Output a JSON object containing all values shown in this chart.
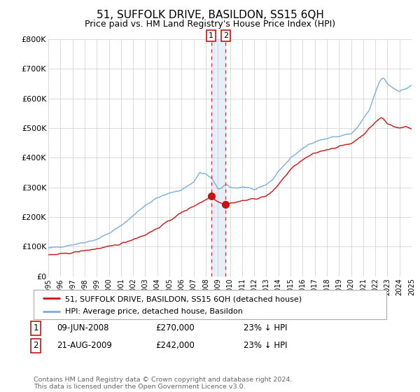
{
  "title": "51, SUFFOLK DRIVE, BASILDON, SS15 6QH",
  "subtitle": "Price paid vs. HM Land Registry's House Price Index (HPI)",
  "title_fontsize": 11,
  "subtitle_fontsize": 9,
  "hpi_color": "#7aaedc",
  "price_color": "#cc1111",
  "background_color": "#ffffff",
  "grid_color": "#cccccc",
  "ylim": [
    0,
    800000
  ],
  "yticks": [
    0,
    100000,
    200000,
    300000,
    400000,
    500000,
    600000,
    700000,
    800000
  ],
  "ytick_labels": [
    "£0",
    "£100K",
    "£200K",
    "£300K",
    "£400K",
    "£500K",
    "£600K",
    "£700K",
    "£800K"
  ],
  "transaction1_date": 2008.44,
  "transaction1_price": 270000,
  "transaction2_date": 2009.64,
  "transaction2_price": 242000,
  "legend_label_price": "51, SUFFOLK DRIVE, BASILDON, SS15 6QH (detached house)",
  "legend_label_hpi": "HPI: Average price, detached house, Basildon",
  "table_rows": [
    {
      "num": "1",
      "date": "09-JUN-2008",
      "price": "£270,000",
      "note": "23% ↓ HPI"
    },
    {
      "num": "2",
      "date": "21-AUG-2009",
      "price": "£242,000",
      "note": "23% ↓ HPI"
    }
  ],
  "footnote": "Contains HM Land Registry data © Crown copyright and database right 2024.\nThis data is licensed under the Open Government Licence v3.0.",
  "xmin": 1995,
  "xmax": 2025,
  "hpi_anchors": [
    [
      1995.0,
      95000
    ],
    [
      1996.0,
      100000
    ],
    [
      1997.0,
      107000
    ],
    [
      1998.0,
      115000
    ],
    [
      1999.0,
      125000
    ],
    [
      2000.0,
      145000
    ],
    [
      2001.0,
      170000
    ],
    [
      2002.0,
      205000
    ],
    [
      2003.0,
      240000
    ],
    [
      2004.0,
      265000
    ],
    [
      2005.0,
      280000
    ],
    [
      2006.0,
      292000
    ],
    [
      2007.0,
      318000
    ],
    [
      2007.5,
      350000
    ],
    [
      2008.0,
      345000
    ],
    [
      2008.5,
      330000
    ],
    [
      2009.0,
      295000
    ],
    [
      2009.3,
      298000
    ],
    [
      2009.5,
      305000
    ],
    [
      2009.7,
      308000
    ],
    [
      2010.0,
      300000
    ],
    [
      2010.5,
      298000
    ],
    [
      2011.0,
      302000
    ],
    [
      2011.5,
      300000
    ],
    [
      2012.0,
      292000
    ],
    [
      2012.5,
      298000
    ],
    [
      2013.0,
      310000
    ],
    [
      2013.5,
      325000
    ],
    [
      2014.0,
      355000
    ],
    [
      2014.5,
      375000
    ],
    [
      2015.0,
      400000
    ],
    [
      2015.5,
      415000
    ],
    [
      2016.0,
      430000
    ],
    [
      2016.5,
      445000
    ],
    [
      2017.0,
      455000
    ],
    [
      2017.5,
      460000
    ],
    [
      2018.0,
      465000
    ],
    [
      2018.5,
      470000
    ],
    [
      2019.0,
      472000
    ],
    [
      2019.5,
      478000
    ],
    [
      2020.0,
      480000
    ],
    [
      2020.5,
      500000
    ],
    [
      2021.0,
      530000
    ],
    [
      2021.5,
      560000
    ],
    [
      2022.0,
      620000
    ],
    [
      2022.3,
      650000
    ],
    [
      2022.5,
      665000
    ],
    [
      2022.7,
      670000
    ],
    [
      2023.0,
      650000
    ],
    [
      2023.5,
      635000
    ],
    [
      2024.0,
      625000
    ],
    [
      2024.5,
      632000
    ],
    [
      2025.0,
      645000
    ]
  ],
  "price_anchors": [
    [
      1995.0,
      72000
    ],
    [
      1996.0,
      75000
    ],
    [
      1997.0,
      80000
    ],
    [
      1998.0,
      87000
    ],
    [
      1999.0,
      93000
    ],
    [
      2000.0,
      100000
    ],
    [
      2001.0,
      110000
    ],
    [
      2002.0,
      125000
    ],
    [
      2003.0,
      140000
    ],
    [
      2004.0,
      162000
    ],
    [
      2005.0,
      188000
    ],
    [
      2006.0,
      215000
    ],
    [
      2007.0,
      237000
    ],
    [
      2007.5,
      248000
    ],
    [
      2008.0,
      258000
    ],
    [
      2008.44,
      270000
    ],
    [
      2008.7,
      262000
    ],
    [
      2009.0,
      252000
    ],
    [
      2009.3,
      248000
    ],
    [
      2009.64,
      242000
    ],
    [
      2009.9,
      245000
    ],
    [
      2010.0,
      247000
    ],
    [
      2010.5,
      250000
    ],
    [
      2011.0,
      255000
    ],
    [
      2011.5,
      258000
    ],
    [
      2012.0,
      262000
    ],
    [
      2012.5,
      265000
    ],
    [
      2013.0,
      272000
    ],
    [
      2013.5,
      285000
    ],
    [
      2014.0,
      310000
    ],
    [
      2014.5,
      335000
    ],
    [
      2015.0,
      360000
    ],
    [
      2015.5,
      378000
    ],
    [
      2016.0,
      392000
    ],
    [
      2016.5,
      405000
    ],
    [
      2017.0,
      415000
    ],
    [
      2017.5,
      422000
    ],
    [
      2018.0,
      428000
    ],
    [
      2018.5,
      432000
    ],
    [
      2019.0,
      438000
    ],
    [
      2019.5,
      443000
    ],
    [
      2020.0,
      448000
    ],
    [
      2020.5,
      462000
    ],
    [
      2021.0,
      478000
    ],
    [
      2021.5,
      498000
    ],
    [
      2022.0,
      520000
    ],
    [
      2022.3,
      530000
    ],
    [
      2022.5,
      535000
    ],
    [
      2022.7,
      530000
    ],
    [
      2023.0,
      515000
    ],
    [
      2023.5,
      507000
    ],
    [
      2024.0,
      500000
    ],
    [
      2024.5,
      505000
    ],
    [
      2025.0,
      498000
    ]
  ]
}
